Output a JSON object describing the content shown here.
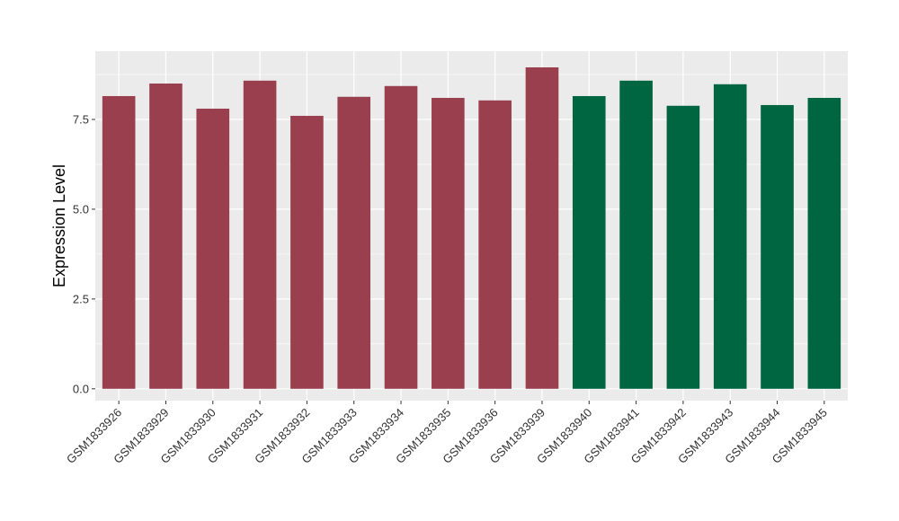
{
  "chart_data": {
    "type": "bar",
    "title": "",
    "xlabel": "",
    "ylabel": "Expression Level",
    "ylim": [
      -0.33,
      9.4
    ],
    "yticks": [
      0.0,
      2.5,
      5.0,
      7.5
    ],
    "ytick_labels": [
      "0.0",
      "2.5",
      "5.0",
      "7.5"
    ],
    "grid": true,
    "legend": "none",
    "panel_color": "#ebebeb",
    "colors": {
      "group_a": "#9a3f4e",
      "group_b": "#006641"
    },
    "categories": [
      "GSM1833926",
      "GSM1833929",
      "GSM1833930",
      "GSM1833931",
      "GSM1833932",
      "GSM1833933",
      "GSM1833934",
      "GSM1833935",
      "GSM1833936",
      "GSM1833939",
      "GSM1833940",
      "GSM1833941",
      "GSM1833942",
      "GSM1833943",
      "GSM1833944",
      "GSM1833945"
    ],
    "values": [
      8.15,
      8.5,
      7.8,
      8.58,
      7.6,
      8.13,
      8.43,
      8.1,
      8.03,
      8.95,
      8.15,
      8.58,
      7.88,
      8.48,
      7.9,
      8.1
    ],
    "bar_groups": [
      "group_a",
      "group_a",
      "group_a",
      "group_a",
      "group_a",
      "group_a",
      "group_a",
      "group_a",
      "group_a",
      "group_a",
      "group_b",
      "group_b",
      "group_b",
      "group_b",
      "group_b",
      "group_b"
    ]
  }
}
